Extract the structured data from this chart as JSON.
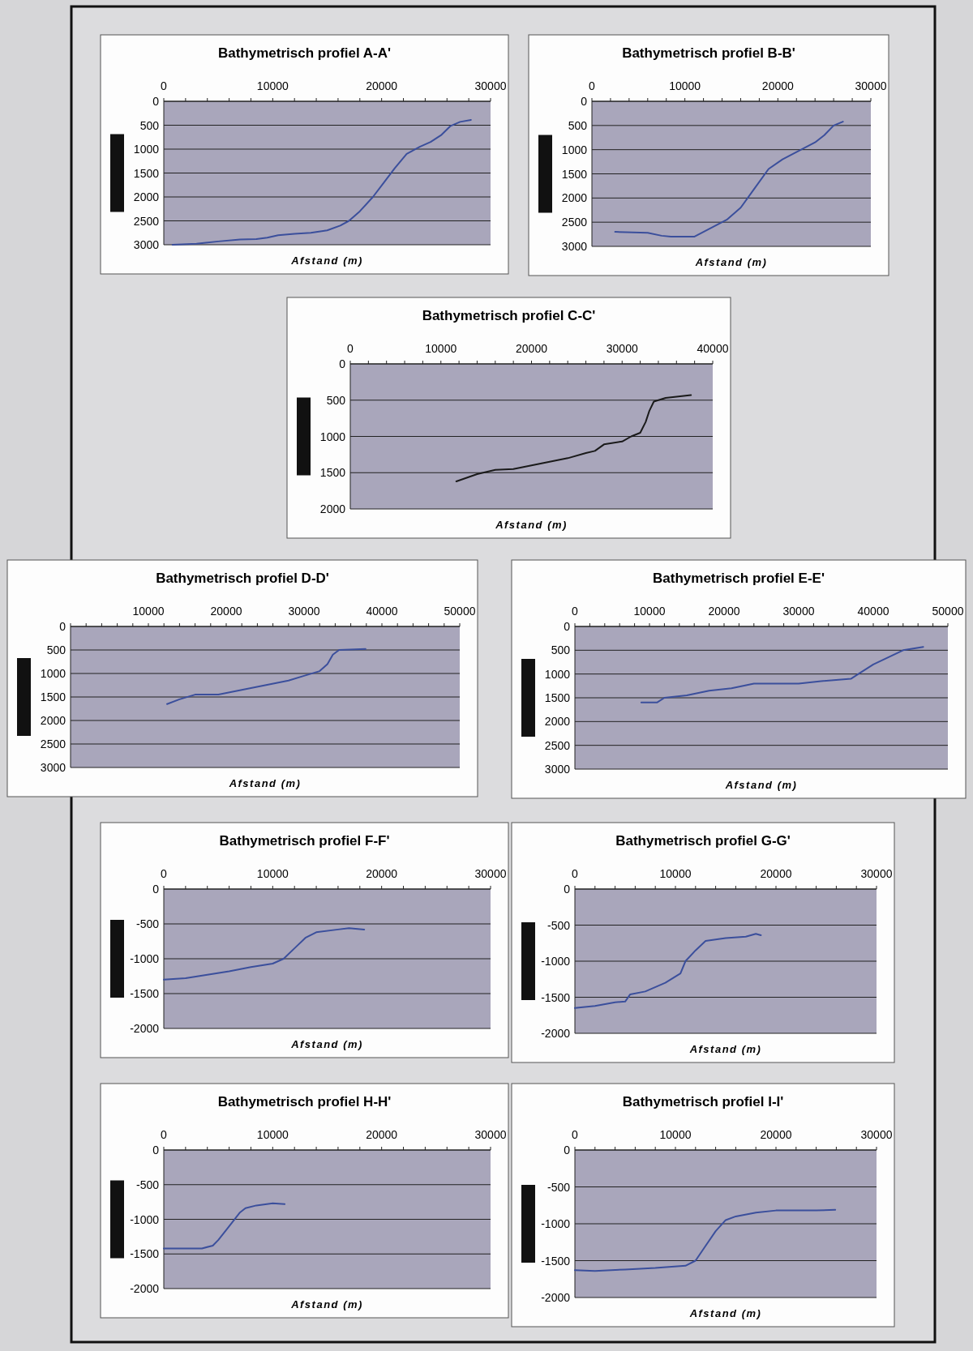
{
  "chart_data": [
    {
      "type": "line",
      "title": "Bathymetrisch profiel A-A'",
      "xlabel": "Afstand (m)",
      "xlim": [
        0,
        30000
      ],
      "xticks": [
        0,
        10000,
        20000,
        30000
      ],
      "ylim": [
        3000,
        0
      ],
      "yticks": [
        0,
        500,
        1000,
        1500,
        2000,
        2500,
        3000
      ],
      "grid": "y",
      "series": [
        {
          "color": "#3b4f9c",
          "x": [
            800,
            3000,
            5000,
            7000,
            8500,
            9500,
            10500,
            12000,
            13500,
            15000,
            16200,
            17000,
            18000,
            19200,
            20200,
            21200,
            22300,
            23500,
            24500,
            25500,
            26300,
            27200,
            28200
          ],
          "values": [
            3000,
            2980,
            2930,
            2890,
            2880,
            2850,
            2800,
            2770,
            2750,
            2700,
            2600,
            2500,
            2300,
            2000,
            1700,
            1400,
            1100,
            950,
            850,
            700,
            520,
            430,
            390
          ]
        }
      ]
    },
    {
      "type": "line",
      "title": "Bathymetrisch profiel B-B'",
      "xlabel": "Afstand (m)",
      "xlim": [
        0,
        30000
      ],
      "xticks": [
        0,
        10000,
        20000,
        30000
      ],
      "ylim": [
        3000,
        0
      ],
      "yticks": [
        0,
        500,
        1000,
        1500,
        2000,
        2500,
        3000
      ],
      "grid": "y",
      "series": [
        {
          "color": "#3b4f9c",
          "x": [
            2500,
            6000,
            7500,
            8500,
            11000,
            12500,
            14500,
            16000,
            17500,
            19000,
            20500,
            22500,
            24000,
            25000,
            26000,
            27000
          ],
          "values": [
            2700,
            2720,
            2780,
            2800,
            2800,
            2650,
            2450,
            2200,
            1800,
            1400,
            1200,
            1000,
            850,
            700,
            500,
            420
          ]
        }
      ]
    },
    {
      "type": "line",
      "title": "Bathymetrisch profiel C-C'",
      "xlabel": "Afstand (m)",
      "xlim": [
        0,
        40000
      ],
      "xticks": [
        0,
        10000,
        20000,
        30000,
        40000
      ],
      "ylim": [
        2000,
        0
      ],
      "yticks": [
        0,
        500,
        1000,
        1500,
        2000
      ],
      "grid": "y",
      "series": [
        {
          "color": "#1a1a1a",
          "x": [
            11700,
            14000,
            16000,
            18000,
            20000,
            22000,
            24000,
            26000,
            27000,
            28000,
            30000,
            31000,
            32000,
            32600,
            33000,
            33500,
            34800,
            37600
          ],
          "values": [
            1620,
            1520,
            1460,
            1450,
            1400,
            1350,
            1300,
            1230,
            1200,
            1110,
            1070,
            1000,
            950,
            800,
            650,
            520,
            470,
            430
          ]
        }
      ]
    },
    {
      "type": "line",
      "title": "Bathymetrisch profiel D-D'",
      "xlabel": "Afstand (m)",
      "xlim": [
        0,
        50000
      ],
      "xticks": [
        {
          "value": 0,
          "label": null
        },
        10000,
        20000,
        30000,
        40000,
        50000
      ],
      "ylim": [
        3000,
        0
      ],
      "yticks": [
        0,
        500,
        1000,
        1500,
        2000,
        2500,
        3000
      ],
      "grid": "y",
      "series": [
        {
          "color": "#3b4f9c",
          "x": [
            12400,
            14000,
            16000,
            19000,
            22000,
            25000,
            28000,
            30000,
            32000,
            33000,
            33700,
            34500,
            37900
          ],
          "values": [
            1650,
            1550,
            1450,
            1450,
            1350,
            1250,
            1150,
            1050,
            950,
            800,
            600,
            500,
            480
          ]
        }
      ]
    },
    {
      "type": "line",
      "title": "Bathymetrisch profiel E-E'",
      "xlabel": "Afstand (m)",
      "xlim": [
        0,
        50000
      ],
      "xticks": [
        0,
        10000,
        20000,
        30000,
        40000,
        50000
      ],
      "ylim": [
        3000,
        0
      ],
      "yticks": [
        0,
        500,
        1000,
        1500,
        2000,
        2500,
        3000
      ],
      "grid": "y",
      "series": [
        {
          "color": "#3b4f9c",
          "x": [
            8900,
            11000,
            12000,
            15000,
            18000,
            21000,
            24000,
            30000,
            33000,
            37000,
            38000,
            40000,
            42000,
            44000,
            46700
          ],
          "values": [
            1600,
            1600,
            1500,
            1450,
            1350,
            1300,
            1200,
            1200,
            1150,
            1100,
            1000,
            800,
            650,
            500,
            430
          ]
        }
      ]
    },
    {
      "type": "line",
      "title": "Bathymetrisch profiel F-F'",
      "xlabel": "Afstand (m)",
      "xlim": [
        0,
        30000
      ],
      "xticks": [
        0,
        10000,
        20000,
        30000
      ],
      "ylim": [
        -2000,
        0
      ],
      "yticks": [
        0,
        -500,
        -1000,
        -1500,
        -2000
      ],
      "grid": "y",
      "series": [
        {
          "color": "#3b4f9c",
          "x": [
            0,
            2000,
            4000,
            6000,
            8000,
            10000,
            11000,
            12000,
            13000,
            14000,
            16000,
            17000,
            18400
          ],
          "values": [
            -1300,
            -1280,
            -1230,
            -1180,
            -1120,
            -1070,
            -1000,
            -850,
            -700,
            -620,
            -580,
            -560,
            -580
          ]
        }
      ]
    },
    {
      "type": "line",
      "title": "Bathymetrisch profiel G-G'",
      "xlabel": "Afstand (m)",
      "xlim": [
        0,
        30000
      ],
      "xticks": [
        0,
        10000,
        20000,
        30000
      ],
      "ylim": [
        -2000,
        0
      ],
      "yticks": [
        0,
        -500,
        -1000,
        -1500,
        -2000
      ],
      "grid": "y",
      "series": [
        {
          "color": "#3b4f9c",
          "x": [
            0,
            2000,
            4000,
            5000,
            5500,
            7000,
            9000,
            10500,
            11000,
            12000,
            13000,
            15000,
            17000,
            18000,
            18500
          ],
          "values": [
            -1650,
            -1620,
            -1570,
            -1560,
            -1460,
            -1420,
            -1300,
            -1170,
            -1000,
            -850,
            -720,
            -680,
            -660,
            -620,
            -640
          ]
        }
      ]
    },
    {
      "type": "line",
      "title": "Bathymetrisch profiel H-H'",
      "xlabel": "Afstand (m)",
      "xlim": [
        0,
        30000
      ],
      "xticks": [
        0,
        10000,
        20000,
        30000
      ],
      "ylim": [
        -2000,
        0
      ],
      "yticks": [
        0,
        -500,
        -1000,
        -1500,
        -2000
      ],
      "grid": "y",
      "series": [
        {
          "color": "#3b4f9c",
          "x": [
            0,
            3500,
            4500,
            5000,
            6000,
            7000,
            7500,
            8500,
            10000,
            11100
          ],
          "values": [
            -1420,
            -1420,
            -1380,
            -1300,
            -1100,
            -900,
            -840,
            -800,
            -770,
            -780
          ]
        }
      ]
    },
    {
      "type": "line",
      "title": "Bathymetrisch profiel I-I'",
      "xlabel": "Afstand (m)",
      "xlim": [
        0,
        30000
      ],
      "xticks": [
        0,
        10000,
        20000,
        30000
      ],
      "ylim": [
        -2000,
        0
      ],
      "yticks": [
        0,
        -500,
        -1000,
        -1500,
        -2000
      ],
      "grid": "y",
      "series": [
        {
          "color": "#3b4f9c",
          "x": [
            0,
            2000,
            5000,
            8000,
            11000,
            12000,
            13000,
            14000,
            15000,
            16000,
            18000,
            20000,
            24000,
            25900
          ],
          "values": [
            -1630,
            -1640,
            -1620,
            -1600,
            -1570,
            -1500,
            -1300,
            -1100,
            -950,
            -900,
            -850,
            -820,
            -820,
            -810
          ]
        }
      ]
    }
  ]
}
